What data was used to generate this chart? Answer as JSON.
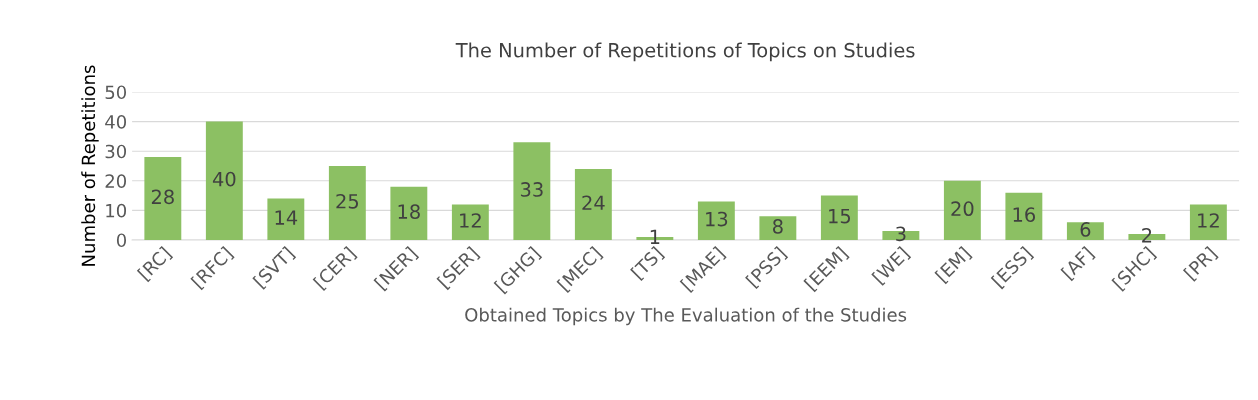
{
  "chart_data": {
    "type": "bar",
    "title": "The Number of Repetitions of Topics on Studies",
    "xlabel": "Obtained Topics by The Evaluation of the Studies",
    "ylabel": "Number of Repetitions",
    "categories": [
      "[RC]",
      "[RFC]",
      "[SVT]",
      "[CER]",
      "[NER]",
      "[SER]",
      "[GHG]",
      "[MEC]",
      "[TS]",
      "[MAE]",
      "[PSS]",
      "[EEM]",
      "[WE]",
      "[EM]",
      "[ESS]",
      "[AF]",
      "[SHC]",
      "[PR]"
    ],
    "values": [
      28,
      40,
      14,
      25,
      18,
      12,
      33,
      24,
      1,
      13,
      8,
      15,
      3,
      20,
      16,
      6,
      2,
      12
    ],
    "color": "#8cc063",
    "ylim": [
      0,
      50
    ],
    "yticks": [
      0,
      10,
      20,
      30,
      40,
      50
    ],
    "grid": "y",
    "data_labels": true,
    "legend": false
  }
}
